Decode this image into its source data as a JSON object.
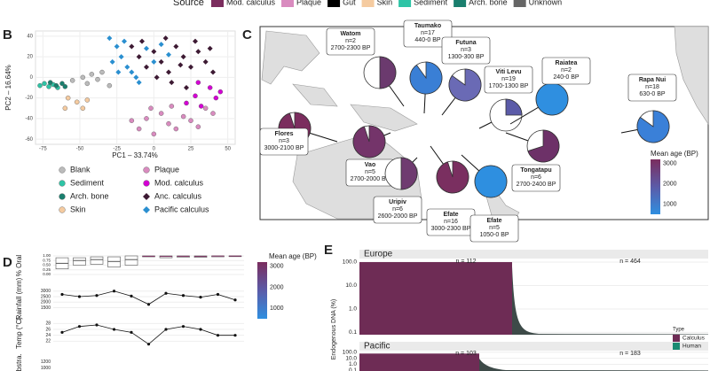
{
  "legend_top": {
    "title": "Source",
    "items": [
      {
        "label": "Mod. calculus",
        "color": "#7b2d5e"
      },
      {
        "label": "Plaque",
        "color": "#d98bbf"
      },
      {
        "label": "Gut",
        "color": "#000000"
      },
      {
        "label": "Skin",
        "color": "#f5cba0"
      },
      {
        "label": "Sediment",
        "color": "#2ec4a6"
      },
      {
        "label": "Arch. bone",
        "color": "#1a7f6e"
      },
      {
        "label": "Unknown",
        "color": "#666666"
      }
    ]
  },
  "panel_labels": [
    "B",
    "C",
    "D",
    "E"
  ],
  "pca": {
    "x_label": "PC1 – 33.74%",
    "y_label": "PC2 – 16.64%",
    "xlim": [
      -80,
      55
    ],
    "ylim": [
      -65,
      45
    ],
    "xticks": [
      -75,
      -50,
      -25,
      0,
      25,
      50
    ],
    "yticks": [
      -60,
      -40,
      -20,
      0,
      20,
      40
    ],
    "groups": [
      {
        "name": "Blank",
        "color": "#bbbbbb",
        "shape": "circle",
        "points": [
          [
            -55,
            -3
          ],
          [
            -48,
            0
          ],
          [
            -42,
            3
          ],
          [
            -38,
            -2
          ],
          [
            -35,
            5
          ],
          [
            -30,
            -8
          ],
          [
            -45,
            -6
          ]
        ]
      },
      {
        "name": "Sediment",
        "color": "#2ec4a6",
        "shape": "circle",
        "points": [
          [
            -77,
            -8
          ],
          [
            -74,
            -6
          ],
          [
            -71,
            -9
          ],
          [
            -68,
            -7
          ],
          [
            -65,
            -10
          ]
        ]
      },
      {
        "name": "Arch. bone",
        "color": "#1a7f6e",
        "shape": "circle",
        "points": [
          [
            -70,
            -5
          ],
          [
            -66,
            -8
          ],
          [
            -62,
            -6
          ],
          [
            -60,
            -9
          ]
        ]
      },
      {
        "name": "Skin",
        "color": "#f5cba0",
        "shape": "circle",
        "points": [
          [
            -58,
            -20
          ],
          [
            -52,
            -24
          ],
          [
            -48,
            -30
          ],
          [
            -45,
            -22
          ],
          [
            -60,
            -30
          ]
        ]
      },
      {
        "name": "Plaque",
        "color": "#d98bbf",
        "shape": "circle",
        "points": [
          [
            -10,
            -50
          ],
          [
            -5,
            -40
          ],
          [
            0,
            -55
          ],
          [
            5,
            -35
          ],
          [
            10,
            -45
          ],
          [
            15,
            -50
          ],
          [
            20,
            -38
          ],
          [
            25,
            -42
          ],
          [
            30,
            -48
          ],
          [
            35,
            -30
          ],
          [
            -2,
            -30
          ],
          [
            12,
            -28
          ],
          [
            40,
            -35
          ],
          [
            -15,
            -42
          ]
        ]
      },
      {
        "name": "Mod. calculus",
        "color": "#d400d4",
        "shape": "circle",
        "points": [
          [
            22,
            -25
          ],
          [
            28,
            -18
          ],
          [
            32,
            -28
          ],
          [
            38,
            -10
          ],
          [
            42,
            -20
          ],
          [
            30,
            -5
          ],
          [
            45,
            -14
          ]
        ]
      },
      {
        "name": "Anc. calculus",
        "color": "#3d1a33",
        "shape": "diamond",
        "points": [
          [
            -15,
            30
          ],
          [
            -10,
            20
          ],
          [
            -5,
            10
          ],
          [
            0,
            25
          ],
          [
            5,
            15
          ],
          [
            10,
            5
          ],
          [
            15,
            30
          ],
          [
            20,
            20
          ],
          [
            25,
            10
          ],
          [
            30,
            25
          ],
          [
            35,
            15
          ],
          [
            40,
            5
          ],
          [
            -8,
            35
          ],
          [
            12,
            -5
          ],
          [
            22,
            -10
          ],
          [
            28,
            35
          ],
          [
            2,
            0
          ],
          [
            38,
            28
          ],
          [
            18,
            12
          ],
          [
            8,
            38
          ]
        ]
      },
      {
        "name": "Pacific calculus",
        "color": "#2a8fd0",
        "shape": "diamond",
        "points": [
          [
            -30,
            38
          ],
          [
            -25,
            30
          ],
          [
            -22,
            20
          ],
          [
            -18,
            10
          ],
          [
            -28,
            15
          ],
          [
            -20,
            35
          ],
          [
            -15,
            5
          ],
          [
            -10,
            -5
          ],
          [
            -5,
            28
          ],
          [
            0,
            15
          ],
          [
            5,
            32
          ],
          [
            -12,
            0
          ],
          [
            10,
            22
          ],
          [
            -24,
            5
          ]
        ]
      }
    ]
  },
  "map": {
    "title_colorbar": "Mean age (BP)",
    "cticks": [
      3000,
      2000,
      1000
    ],
    "clim": [
      500,
      3200
    ],
    "sites": [
      {
        "name": "Watom",
        "n": "n=2",
        "date": "2700-2300 BP",
        "fraction": 0.5,
        "color": "#6b3a6e"
      },
      {
        "name": "Taumako",
        "n": "n=17",
        "date": "440-0 BP",
        "fraction": 0.9,
        "color": "#3a7fd5"
      },
      {
        "name": "Futuna",
        "n": "n=3",
        "date": "1300-300 BP",
        "fraction": 0.85,
        "color": "#6a6ab5"
      },
      {
        "name": "Viti Levu",
        "n": "n=19",
        "date": "1700-1300 BP",
        "fraction": 0.25,
        "color": "#5b5ba8"
      },
      {
        "name": "Raiatea",
        "n": "n=2",
        "date": "240-0 BP",
        "fraction": 1,
        "color": "#2f8fe0"
      },
      {
        "name": "Rapa Nui",
        "n": "n=18",
        "date": "630-0 BP",
        "fraction": 0.85,
        "color": "#3a80d8"
      },
      {
        "name": "Flores",
        "n": "n=3",
        "date": "3000-2100 BP",
        "fraction": 0.95,
        "color": "#7b2d5e"
      },
      {
        "name": "Vao",
        "n": "n=5",
        "date": "2700-2000 BP",
        "fraction": 0.95,
        "color": "#74346a"
      },
      {
        "name": "Uripiv",
        "n": "n=6",
        "date": "2600-2000 BP",
        "fraction": 0.5,
        "color": "#6f3b70"
      },
      {
        "name": "Efate",
        "n": "n=16",
        "date": "3000-2300 BP",
        "fraction": 0.95,
        "color": "#7a2f60"
      },
      {
        "name": "Efate",
        "n": "n=5",
        "date": "1050-0 BP",
        "fraction": 1,
        "color": "#2e8fe0"
      },
      {
        "name": "Tongatapu",
        "n": "n=6",
        "date": "2700-2400 BP",
        "fraction": 0.7,
        "color": "#6d3168"
      }
    ]
  },
  "env": {
    "rows": [
      "% Oral",
      "Rainfall (mm)",
      "Temp (°C)",
      "Abstra."
    ],
    "oral_ticks": [
      {
        "value": 1,
        "label": "1.00"
      },
      {
        "value": 0.75,
        "label": "0.75"
      },
      {
        "value": 0.5,
        "label": "0.50"
      },
      {
        "value": 0.25,
        "label": "0.25"
      },
      {
        "value": 0,
        "label": "0.00"
      }
    ],
    "oral_boxes": [
      [
        0.3,
        0.6,
        0.9
      ],
      [
        0.5,
        0.75,
        0.9
      ],
      [
        0.55,
        0.8,
        0.95
      ],
      [
        0.4,
        0.7,
        0.95
      ],
      [
        0.5,
        0.8,
        1
      ],
      [
        0.95,
        0.98,
        1
      ],
      [
        0.9,
        0.97,
        1
      ],
      [
        0.93,
        0.98,
        1
      ],
      [
        0.92,
        0.97,
        1
      ],
      [
        0.95,
        0.99,
        1
      ],
      [
        0.96,
        0.99,
        1
      ]
    ],
    "rain_ticks": [
      1500,
      2000,
      2500,
      3000
    ],
    "rain_lim": [
      1300,
      3300
    ],
    "rain": [
      2700,
      2500,
      2600,
      3000,
      2550,
      1800,
      2800,
      2600,
      2450,
      2700,
      2200
    ],
    "temp_ticks": [
      22,
      24,
      26,
      28
    ],
    "temp_lim": [
      20,
      29
    ],
    "temp": [
      25,
      27,
      27.5,
      26,
      25,
      21,
      26,
      27,
      26,
      24,
      24
    ],
    "abstra_ticks": [
      1000,
      1200
    ],
    "colorbar_title": "Mean age (BP)",
    "cticks": [
      3000,
      2000,
      1000
    ],
    "clim": [
      500,
      3200
    ]
  },
  "dna": {
    "y_label": "Endogenous DNA (%)",
    "ylim": [
      0.08,
      130
    ],
    "yticks": [
      {
        "value": 100,
        "label": "100.0"
      },
      {
        "value": 10,
        "label": "10.0"
      },
      {
        "value": 1,
        "label": "1.0"
      },
      {
        "value": 0.1,
        "label": "0.1"
      }
    ],
    "facets": [
      {
        "name": "Europe",
        "n_calculus": "n = 112",
        "n_human": "n = 464"
      },
      {
        "name": "Pacific",
        "n_calculus": "n = 103",
        "n_human": "n = 183"
      }
    ],
    "legend_title": "Type",
    "types": [
      {
        "label": "Calculus",
        "color": "#6e2c55"
      },
      {
        "label": "Human",
        "color": "#1a8a72"
      }
    ]
  }
}
